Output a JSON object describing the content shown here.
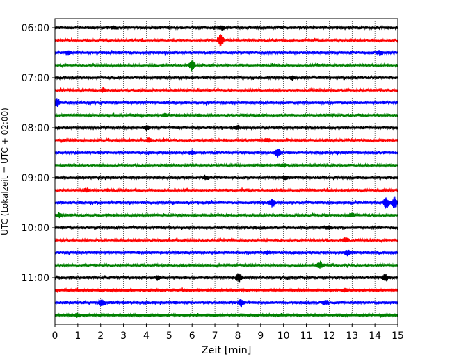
{
  "chart_data": {
    "type": "line",
    "xlabel": "Zeit  [min]",
    "ylabel": "UTC (Lokalzeit = UTC + 02:00)",
    "xlim": [
      0,
      15
    ],
    "x_ticks": [
      "0",
      "1",
      "2",
      "3",
      "4",
      "5",
      "6",
      "7",
      "8",
      "9",
      "10",
      "11",
      "12",
      "13",
      "14",
      "15"
    ],
    "y_tick_labels": [
      "06:00",
      "07:00",
      "08:00",
      "09:00",
      "10:00",
      "11:00"
    ],
    "grid": "vertical-dotted",
    "trace_colors": [
      "#000000",
      "#ff0000",
      "#0000ff",
      "#008000"
    ],
    "traces": [
      {
        "start": "06:00",
        "events": [
          [
            2.6,
            0.25
          ],
          [
            7.3,
            0.35
          ]
        ]
      },
      {
        "start": "06:15",
        "events": [
          [
            7.25,
            1.0
          ]
        ]
      },
      {
        "start": "06:30",
        "events": [
          [
            0.6,
            0.35
          ],
          [
            14.2,
            0.3
          ]
        ]
      },
      {
        "start": "06:45",
        "events": [
          [
            6.0,
            1.0
          ]
        ]
      },
      {
        "start": "07:00",
        "events": [
          [
            10.4,
            0.3
          ]
        ]
      },
      {
        "start": "07:15",
        "events": [
          [
            2.1,
            0.25
          ]
        ]
      },
      {
        "start": "07:30",
        "events": [
          [
            0.1,
            0.7
          ]
        ]
      },
      {
        "start": "07:45",
        "events": [
          [
            4.8,
            0.25
          ]
        ]
      },
      {
        "start": "08:00",
        "events": [
          [
            4.0,
            0.3
          ],
          [
            8.0,
            0.25
          ]
        ]
      },
      {
        "start": "08:15",
        "events": [
          [
            4.1,
            0.3
          ],
          [
            9.3,
            0.25
          ]
        ]
      },
      {
        "start": "08:30",
        "events": [
          [
            6.0,
            0.3
          ],
          [
            9.75,
            0.7
          ]
        ]
      },
      {
        "start": "08:45",
        "events": [
          [
            10.0,
            0.25
          ]
        ]
      },
      {
        "start": "09:00",
        "events": [
          [
            6.6,
            0.3
          ],
          [
            10.1,
            0.3
          ]
        ]
      },
      {
        "start": "09:15",
        "events": [
          [
            1.4,
            0.25
          ]
        ]
      },
      {
        "start": "09:30",
        "events": [
          [
            9.5,
            0.6
          ],
          [
            14.5,
            1.0
          ],
          [
            14.85,
            1.0
          ]
        ]
      },
      {
        "start": "09:45",
        "events": [
          [
            0.2,
            0.3
          ],
          [
            13.0,
            0.25
          ]
        ]
      },
      {
        "start": "10:00",
        "events": [
          [
            12.0,
            0.25
          ]
        ]
      },
      {
        "start": "10:15",
        "events": [
          [
            12.7,
            0.3
          ]
        ]
      },
      {
        "start": "10:30",
        "events": [
          [
            9.3,
            0.25
          ],
          [
            12.8,
            0.45
          ]
        ]
      },
      {
        "start": "10:45",
        "events": [
          [
            11.6,
            0.55
          ]
        ]
      },
      {
        "start": "11:00",
        "events": [
          [
            4.5,
            0.35
          ],
          [
            8.05,
            0.85
          ],
          [
            14.45,
            0.6
          ]
        ]
      },
      {
        "start": "11:15",
        "events": [
          [
            12.7,
            0.25
          ]
        ]
      },
      {
        "start": "11:30",
        "events": [
          [
            2.05,
            0.65
          ],
          [
            8.15,
            0.6
          ],
          [
            11.8,
            0.35
          ]
        ]
      },
      {
        "start": "11:45",
        "events": [
          [
            1.0,
            0.25
          ]
        ]
      }
    ]
  }
}
